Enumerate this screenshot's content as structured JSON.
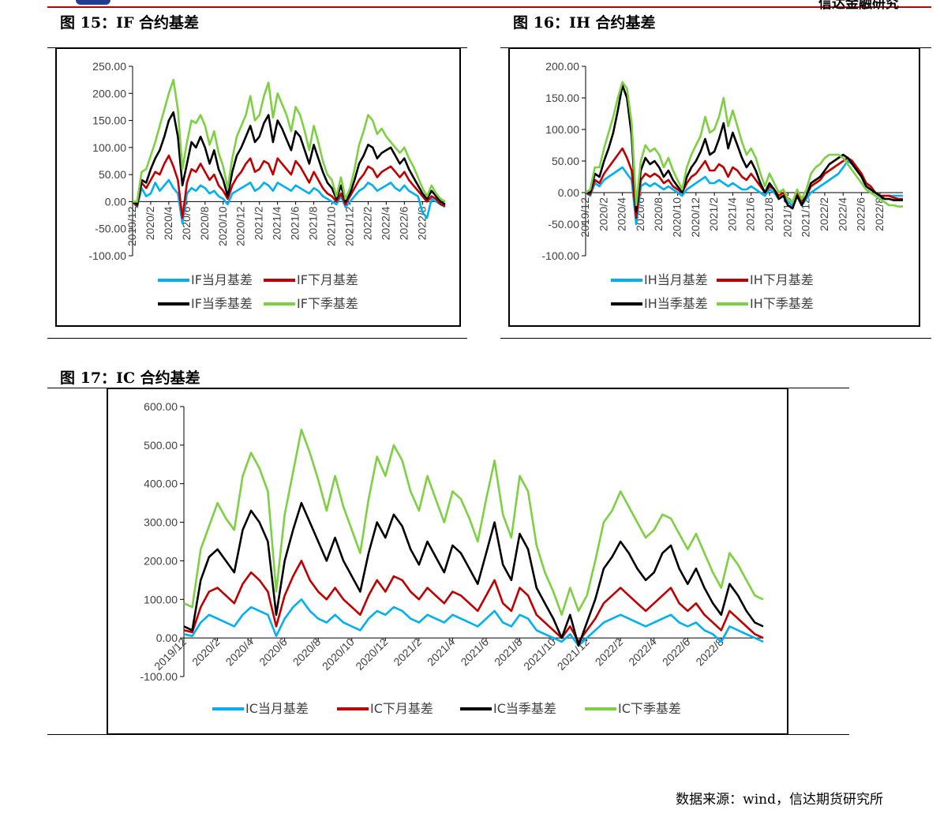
{
  "header": {
    "brand": "信达金融研究",
    "fig15_title": "图 15：IF 合约基差",
    "fig16_title": "图 16：IH 合约基差",
    "fig17_title": "图 17：IC 合约基差"
  },
  "footer": {
    "source": "数据来源：wind，信达期货研究所"
  },
  "chart_data": [
    {
      "id": "if",
      "type": "line",
      "title": "IF 合约基差",
      "ylim": [
        -100,
        250
      ],
      "yticks": [
        250,
        200,
        150,
        100,
        50,
        0,
        -50,
        -100
      ],
      "ytick_labels": [
        "250.00",
        "200.00",
        "150.00",
        "100.00",
        "50.00",
        "0.00",
        "-50.00",
        "-100.00"
      ],
      "x_index_range": [
        0,
        69
      ],
      "xticks": [
        0,
        4,
        8,
        12,
        16,
        20,
        24,
        28,
        32,
        36,
        40,
        44,
        48,
        52,
        56,
        60,
        64
      ],
      "xtick_labels": [
        "2019/12",
        "2020/2",
        "2020/4",
        "2020/6",
        "2020/8",
        "2020/10",
        "2020/12",
        "2021/2",
        "2021/4",
        "2021/6",
        "2021/8",
        "2021/10",
        "2021/12",
        "2022/2",
        "2022/4",
        "2022/6",
        "2022/8"
      ],
      "series": [
        {
          "name": "IF当月基差",
          "color": "#00b0f0",
          "values": [
            0,
            -10,
            25,
            10,
            15,
            35,
            20,
            30,
            40,
            25,
            15,
            -40,
            15,
            25,
            20,
            30,
            25,
            15,
            20,
            10,
            5,
            -5,
            15,
            20,
            25,
            30,
            35,
            20,
            25,
            35,
            30,
            20,
            35,
            30,
            25,
            20,
            30,
            25,
            20,
            15,
            25,
            20,
            10,
            5,
            0,
            -5,
            10,
            -10,
            0,
            10,
            20,
            25,
            35,
            30,
            20,
            25,
            30,
            35,
            25,
            20,
            30,
            20,
            15,
            10,
            -20,
            -30,
            5,
            0,
            -5,
            -10
          ]
        },
        {
          "name": "IF下月基差",
          "color": "#c00000",
          "values": [
            0,
            -8,
            35,
            25,
            40,
            55,
            50,
            70,
            85,
            65,
            40,
            -30,
            35,
            60,
            55,
            70,
            55,
            40,
            50,
            30,
            20,
            5,
            30,
            45,
            55,
            70,
            80,
            55,
            60,
            75,
            70,
            50,
            80,
            70,
            60,
            50,
            75,
            65,
            50,
            35,
            55,
            40,
            25,
            15,
            10,
            0,
            15,
            -5,
            10,
            25,
            40,
            50,
            65,
            60,
            45,
            55,
            60,
            65,
            55,
            45,
            55,
            40,
            30,
            20,
            10,
            0,
            10,
            5,
            -5,
            -8
          ]
        },
        {
          "name": "IF当季基差",
          "color": "#000000",
          "values": [
            0,
            -5,
            40,
            35,
            60,
            80,
            95,
            120,
            150,
            165,
            120,
            30,
            70,
            110,
            100,
            120,
            100,
            70,
            95,
            60,
            40,
            10,
            55,
            85,
            100,
            120,
            140,
            110,
            120,
            145,
            160,
            110,
            150,
            135,
            115,
            95,
            130,
            120,
            95,
            70,
            105,
            80,
            55,
            35,
            25,
            5,
            30,
            0,
            15,
            40,
            70,
            85,
            105,
            100,
            80,
            90,
            95,
            100,
            85,
            70,
            80,
            60,
            45,
            30,
            15,
            5,
            20,
            10,
            0,
            -5
          ]
        },
        {
          "name": "IF下季基差",
          "color": "#7ed043",
          "values": [
            0,
            0,
            55,
            60,
            85,
            110,
            140,
            170,
            200,
            225,
            170,
            60,
            110,
            150,
            145,
            160,
            140,
            105,
            130,
            90,
            65,
            25,
            80,
            120,
            140,
            160,
            195,
            150,
            160,
            195,
            220,
            155,
            200,
            180,
            160,
            130,
            175,
            160,
            130,
            95,
            140,
            110,
            75,
            50,
            40,
            10,
            45,
            5,
            25,
            60,
            105,
            130,
            160,
            150,
            125,
            135,
            120,
            110,
            100,
            90,
            100,
            80,
            65,
            45,
            25,
            10,
            30,
            15,
            5,
            0
          ]
        }
      ],
      "legend": [
        "IF当月基差",
        "IF下月基差",
        "IF当季基差",
        "IF下季基差"
      ]
    },
    {
      "id": "ih",
      "type": "line",
      "title": "IH 合约基差",
      "ylim": [
        -100,
        200
      ],
      "yticks": [
        200,
        150,
        100,
        50,
        0,
        -50,
        -100
      ],
      "ytick_labels": [
        "200.00",
        "150.00",
        "100.00",
        "50.00",
        "0.00",
        "-50.00",
        "-100.00"
      ],
      "x_index_range": [
        0,
        69
      ],
      "xticks": [
        0,
        4,
        8,
        12,
        16,
        20,
        24,
        28,
        32,
        36,
        40,
        44,
        48,
        52,
        56,
        60,
        64
      ],
      "xtick_labels": [
        "2019/12",
        "2020/2",
        "2020/4",
        "2020/6",
        "2020/8",
        "2020/10",
        "2020/12",
        "2021/2",
        "2021/4",
        "2021/6",
        "2021/8",
        "2021/10",
        "2021/12",
        "2022/2",
        "2022/4",
        "2022/6",
        "2022/8"
      ],
      "series": [
        {
          "name": "IH当月基差",
          "color": "#00b0f0",
          "values": [
            0,
            -5,
            15,
            10,
            20,
            25,
            30,
            35,
            40,
            30,
            20,
            -50,
            10,
            15,
            10,
            15,
            10,
            5,
            10,
            5,
            0,
            -5,
            5,
            10,
            15,
            20,
            25,
            15,
            15,
            20,
            15,
            10,
            15,
            10,
            5,
            5,
            10,
            5,
            0,
            -5,
            5,
            0,
            -10,
            -5,
            -15,
            -20,
            -5,
            -20,
            -10,
            0,
            5,
            10,
            15,
            20,
            25,
            30,
            40,
            50,
            45,
            35,
            25,
            10,
            5,
            0,
            -5,
            -5,
            -5,
            -5,
            -5,
            -5
          ]
        },
        {
          "name": "IH下月基差",
          "color": "#c00000",
          "values": [
            0,
            -3,
            20,
            15,
            30,
            40,
            50,
            60,
            70,
            55,
            35,
            -40,
            20,
            30,
            25,
            30,
            25,
            15,
            20,
            10,
            5,
            0,
            15,
            25,
            30,
            40,
            50,
            35,
            35,
            45,
            40,
            25,
            40,
            35,
            25,
            20,
            30,
            20,
            10,
            0,
            10,
            5,
            -5,
            0,
            -10,
            -15,
            0,
            -15,
            -5,
            10,
            15,
            20,
            30,
            35,
            40,
            45,
            50,
            55,
            50,
            40,
            30,
            15,
            10,
            0,
            -5,
            -5,
            -5,
            -8,
            -10,
            -10
          ]
        },
        {
          "name": "IH当季基差",
          "color": "#000000",
          "values": [
            0,
            0,
            30,
            25,
            50,
            70,
            95,
            130,
            170,
            150,
            90,
            -30,
            35,
            55,
            45,
            50,
            40,
            25,
            35,
            20,
            10,
            0,
            25,
            40,
            50,
            65,
            85,
            60,
            65,
            85,
            110,
            70,
            95,
            75,
            55,
            40,
            50,
            35,
            15,
            0,
            15,
            5,
            -10,
            -5,
            -20,
            -25,
            -5,
            -20,
            -5,
            15,
            20,
            25,
            35,
            45,
            50,
            55,
            60,
            55,
            45,
            35,
            25,
            10,
            5,
            0,
            -5,
            -10,
            -10,
            -12,
            -12,
            -12
          ]
        },
        {
          "name": "IH下季基差",
          "color": "#7ed043",
          "values": [
            0,
            5,
            40,
            40,
            70,
            95,
            120,
            150,
            175,
            165,
            110,
            -20,
            50,
            75,
            65,
            70,
            60,
            40,
            55,
            35,
            20,
            5,
            40,
            60,
            75,
            90,
            120,
            95,
            100,
            120,
            150,
            105,
            130,
            105,
            80,
            60,
            70,
            55,
            30,
            10,
            30,
            15,
            0,
            5,
            -10,
            -15,
            5,
            -10,
            5,
            30,
            40,
            45,
            55,
            60,
            60,
            60,
            55,
            45,
            35,
            25,
            15,
            5,
            0,
            -5,
            -10,
            -15,
            -20,
            -20,
            -22,
            -22
          ]
        }
      ],
      "legend": [
        "IH当月基差",
        "IH下月基差",
        "IH当季基差",
        "IH下季基差"
      ]
    },
    {
      "id": "ic",
      "type": "line",
      "title": "IC 合约基差",
      "ylim": [
        -100,
        600
      ],
      "yticks": [
        600,
        500,
        400,
        300,
        200,
        100,
        0,
        -100
      ],
      "ytick_labels": [
        "600.00",
        "500.00",
        "400.00",
        "300.00",
        "200.00",
        "100.00",
        "0.00",
        "-100.00"
      ],
      "x_index_range": [
        0,
        69
      ],
      "xticks": [
        0,
        4,
        8,
        12,
        16,
        20,
        24,
        28,
        32,
        36,
        40,
        44,
        48,
        52,
        56,
        60,
        64
      ],
      "xtick_labels": [
        "2019/12",
        "2020/2",
        "2020/4",
        "2020/6",
        "2020/8",
        "2020/10",
        "2020/12",
        "2021/2",
        "2021/4",
        "2021/6",
        "2021/8",
        "2021/10",
        "2021/12",
        "2022/2",
        "2022/4",
        "2022/6",
        "2022/8"
      ],
      "series": [
        {
          "name": "IC当月基差",
          "color": "#00b0f0",
          "values": [
            10,
            5,
            40,
            60,
            50,
            40,
            30,
            60,
            80,
            70,
            60,
            5,
            50,
            80,
            100,
            70,
            50,
            40,
            60,
            40,
            30,
            20,
            50,
            70,
            60,
            80,
            70,
            50,
            40,
            60,
            50,
            40,
            60,
            50,
            40,
            30,
            50,
            70,
            40,
            30,
            60,
            50,
            20,
            10,
            0,
            -10,
            10,
            -20,
            0,
            20,
            40,
            50,
            60,
            50,
            40,
            30,
            40,
            50,
            60,
            40,
            30,
            40,
            20,
            10,
            -10,
            30,
            20,
            10,
            0,
            -10
          ]
        },
        {
          "name": "IC下月基差",
          "color": "#c00000",
          "values": [
            20,
            15,
            80,
            120,
            130,
            110,
            90,
            140,
            170,
            150,
            120,
            30,
            110,
            160,
            200,
            150,
            120,
            100,
            130,
            100,
            80,
            60,
            110,
            150,
            120,
            160,
            150,
            120,
            100,
            130,
            110,
            90,
            120,
            110,
            90,
            70,
            110,
            150,
            90,
            70,
            130,
            110,
            60,
            40,
            20,
            0,
            30,
            -10,
            20,
            50,
            90,
            110,
            130,
            110,
            90,
            70,
            90,
            110,
            130,
            90,
            70,
            90,
            60,
            40,
            20,
            70,
            50,
            30,
            10,
            0
          ]
        },
        {
          "name": "IC当季基差",
          "color": "#000000",
          "values": [
            30,
            20,
            150,
            210,
            230,
            200,
            170,
            280,
            330,
            300,
            250,
            60,
            200,
            280,
            350,
            300,
            250,
            200,
            260,
            200,
            160,
            120,
            220,
            300,
            260,
            320,
            290,
            230,
            190,
            250,
            210,
            170,
            240,
            220,
            180,
            140,
            220,
            300,
            190,
            150,
            270,
            230,
            130,
            90,
            50,
            0,
            60,
            -20,
            40,
            100,
            180,
            210,
            250,
            220,
            180,
            150,
            170,
            220,
            240,
            180,
            140,
            180,
            130,
            90,
            60,
            140,
            110,
            70,
            40,
            30
          ]
        },
        {
          "name": "IC下季基差",
          "color": "#7ed043",
          "values": [
            90,
            80,
            230,
            290,
            350,
            310,
            280,
            420,
            480,
            440,
            380,
            120,
            320,
            430,
            540,
            480,
            410,
            330,
            420,
            340,
            280,
            220,
            360,
            470,
            420,
            500,
            460,
            380,
            330,
            420,
            360,
            300,
            380,
            360,
            310,
            250,
            360,
            460,
            320,
            260,
            420,
            380,
            240,
            170,
            120,
            60,
            130,
            70,
            110,
            200,
            300,
            330,
            380,
            340,
            300,
            260,
            280,
            320,
            310,
            270,
            230,
            270,
            220,
            170,
            130,
            220,
            190,
            150,
            110,
            100
          ]
        }
      ],
      "legend": [
        "IC当月基差",
        "IC下月基差",
        "IC当季基差",
        "IC下季基差"
      ]
    }
  ]
}
